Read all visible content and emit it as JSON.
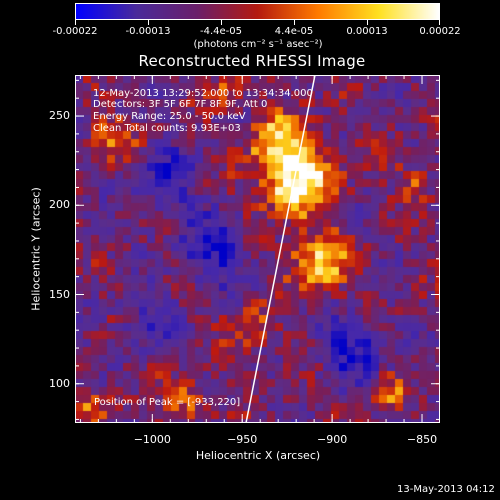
{
  "colorbar": {
    "labels": [
      "-0.00022",
      "-0.00013",
      "-4.4e-05",
      "4.4e-05",
      "0.00013",
      "0.00022"
    ],
    "units": "(photons cm⁻² s⁻¹ asec⁻²)",
    "colors": [
      "#0000ff",
      "#4a2a9a",
      "#6a1f6a",
      "#b41a10",
      "#ff7a00",
      "#ffe020",
      "#ffffff"
    ]
  },
  "title": "Reconstructed RHESSI Image",
  "info": {
    "line1": "12-May-2013 13:29:52.000 to 13:34:34.000",
    "line2": "Detectors: 3F 5F 6F 7F 8F 9F, Att 0",
    "line3": "Energy Range: 25.0 - 50.0 keV",
    "line4": "Clean     Total counts: 9.93E+03"
  },
  "peak_label": "Position of Peak = [-933,220]",
  "axes": {
    "xlabel": "Heliocentric X (arcsec)",
    "ylabel": "Heliocentric Y (arcsec)",
    "xticks": [
      "-1000",
      "-950",
      "-900",
      "-850"
    ],
    "yticks": [
      "250",
      "200",
      "150",
      "100"
    ],
    "xrange": [
      -1043,
      -840
    ],
    "yrange": [
      78,
      273
    ]
  },
  "footer": {
    "date_stamp": "13-May-2013 04:12"
  }
}
